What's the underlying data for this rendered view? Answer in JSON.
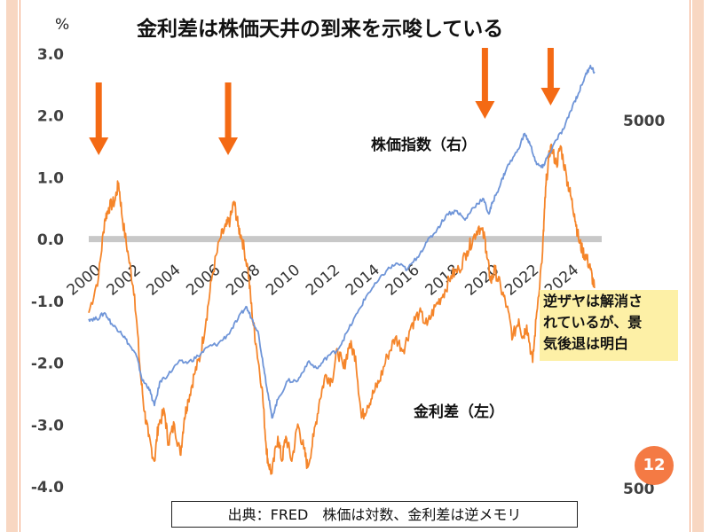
{
  "slide": {
    "title": "金利差は株価天井の到来を示唆している",
    "page_number": "12",
    "callout": [
      "逆ザヤは解消さ",
      "れているが、景",
      "気後退は明白"
    ],
    "source_note": "出典：FRED　株価は対数、金利差は逆メモリ",
    "label_stock": "株価指数（右）",
    "label_spread": "金利差（左）",
    "colors": {
      "spread": "#f5852a",
      "stock": "#6f95d8",
      "arrow": "#f46a14",
      "zero_band": "#c8c8c8",
      "rail": "#f8d7c2"
    }
  },
  "chart_data": {
    "type": "line",
    "y_left": {
      "unit": "%",
      "ticks": [
        "3.0",
        "2.0",
        "1.0",
        "0.0",
        "-1.0",
        "-2.0",
        "-3.0",
        "-4.0"
      ],
      "range": [
        -4,
        3
      ]
    },
    "y_right": {
      "scale": "log",
      "ticks": [
        "5000",
        "500"
      ]
    },
    "x_ticks": [
      "2000",
      "2002",
      "2004",
      "2006",
      "2008",
      "2010",
      "2012",
      "2014",
      "2016",
      "2018",
      "2020",
      "2022",
      "2024"
    ],
    "x_range": [
      2000,
      2025.5
    ],
    "grid": false,
    "series": [
      {
        "name": "金利差（左）",
        "axis": "left",
        "points": [
          [
            2000.0,
            -1.2
          ],
          [
            2000.5,
            -0.6
          ],
          [
            2000.8,
            0.3
          ],
          [
            2001.0,
            0.5
          ],
          [
            2001.3,
            0.6
          ],
          [
            2001.5,
            0.9
          ],
          [
            2001.7,
            0.3
          ],
          [
            2002.0,
            -0.3
          ],
          [
            2002.3,
            -0.9
          ],
          [
            2002.6,
            -2.2
          ],
          [
            2002.8,
            -2.8
          ],
          [
            2003.0,
            -3.2
          ],
          [
            2003.3,
            -3.6
          ],
          [
            2003.5,
            -3.0
          ],
          [
            2003.8,
            -2.8
          ],
          [
            2004.0,
            -3.3
          ],
          [
            2004.3,
            -3.0
          ],
          [
            2004.6,
            -3.5
          ],
          [
            2004.8,
            -2.9
          ],
          [
            2005.0,
            -2.6
          ],
          [
            2005.3,
            -2.2
          ],
          [
            2005.6,
            -1.9
          ],
          [
            2005.9,
            -1.3
          ],
          [
            2006.2,
            -0.6
          ],
          [
            2006.6,
            0.0
          ],
          [
            2006.9,
            0.2
          ],
          [
            2007.1,
            0.3
          ],
          [
            2007.3,
            0.6
          ],
          [
            2007.5,
            0.2
          ],
          [
            2007.7,
            0.0
          ],
          [
            2008.0,
            -0.5
          ],
          [
            2008.2,
            -1.2
          ],
          [
            2008.4,
            -1.7
          ],
          [
            2008.7,
            -2.4
          ],
          [
            2008.9,
            -3.3
          ],
          [
            2009.0,
            -3.6
          ],
          [
            2009.2,
            -3.8
          ],
          [
            2009.5,
            -3.2
          ],
          [
            2009.7,
            -3.6
          ],
          [
            2009.9,
            -3.2
          ],
          [
            2010.2,
            -3.6
          ],
          [
            2010.5,
            -3.0
          ],
          [
            2010.8,
            -3.4
          ],
          [
            2011.0,
            -3.7
          ],
          [
            2011.3,
            -3.2
          ],
          [
            2011.6,
            -2.6
          ],
          [
            2011.9,
            -2.2
          ],
          [
            2012.2,
            -2.3
          ],
          [
            2012.5,
            -1.8
          ],
          [
            2012.8,
            -2.1
          ],
          [
            2013.1,
            -1.7
          ],
          [
            2013.4,
            -1.9
          ],
          [
            2013.7,
            -2.9
          ],
          [
            2014.0,
            -2.7
          ],
          [
            2014.3,
            -2.5
          ],
          [
            2014.6,
            -2.3
          ],
          [
            2015.0,
            -1.9
          ],
          [
            2015.4,
            -1.6
          ],
          [
            2015.8,
            -1.8
          ],
          [
            2016.2,
            -1.4
          ],
          [
            2016.6,
            -1.2
          ],
          [
            2017.0,
            -1.4
          ],
          [
            2017.4,
            -1.1
          ],
          [
            2017.8,
            -0.9
          ],
          [
            2018.2,
            -0.6
          ],
          [
            2018.6,
            -0.5
          ],
          [
            2019.0,
            -0.2
          ],
          [
            2019.3,
            0.0
          ],
          [
            2019.6,
            0.2
          ],
          [
            2019.9,
            0.0
          ],
          [
            2020.0,
            -0.3
          ],
          [
            2020.2,
            -0.7
          ],
          [
            2020.4,
            -0.5
          ],
          [
            2020.7,
            -0.8
          ],
          [
            2021.0,
            -1.1
          ],
          [
            2021.3,
            -1.6
          ],
          [
            2021.6,
            -1.3
          ],
          [
            2021.8,
            -1.6
          ],
          [
            2022.0,
            -1.4
          ],
          [
            2022.3,
            -2.0
          ],
          [
            2022.5,
            -1.2
          ],
          [
            2022.8,
            -0.2
          ],
          [
            2022.9,
            0.5
          ],
          [
            2023.0,
            1.0
          ],
          [
            2023.2,
            1.5
          ],
          [
            2023.5,
            1.2
          ],
          [
            2023.7,
            1.5
          ],
          [
            2024.0,
            1.0
          ],
          [
            2024.2,
            0.7
          ],
          [
            2024.4,
            0.4
          ],
          [
            2024.6,
            0.0
          ],
          [
            2024.8,
            -0.2
          ],
          [
            2025.0,
            -0.3
          ],
          [
            2025.2,
            -0.5
          ],
          [
            2025.4,
            -0.8
          ]
        ]
      },
      {
        "name": "株価指数（右）",
        "axis": "right",
        "points": [
          [
            2000.0,
            -1.3
          ],
          [
            2000.4,
            -1.3
          ],
          [
            2000.8,
            -1.2
          ],
          [
            2001.2,
            -1.4
          ],
          [
            2001.6,
            -1.5
          ],
          [
            2002.0,
            -1.7
          ],
          [
            2002.4,
            -1.9
          ],
          [
            2002.7,
            -2.3
          ],
          [
            2003.0,
            -2.4
          ],
          [
            2003.3,
            -2.7
          ],
          [
            2003.6,
            -2.3
          ],
          [
            2004.0,
            -2.2
          ],
          [
            2004.5,
            -2.0
          ],
          [
            2005.0,
            -2.0
          ],
          [
            2005.5,
            -1.9
          ],
          [
            2006.0,
            -1.75
          ],
          [
            2006.5,
            -1.7
          ],
          [
            2007.0,
            -1.55
          ],
          [
            2007.5,
            -1.3
          ],
          [
            2007.9,
            -1.1
          ],
          [
            2008.2,
            -1.3
          ],
          [
            2008.5,
            -1.5
          ],
          [
            2008.8,
            -2.1
          ],
          [
            2009.0,
            -2.5
          ],
          [
            2009.2,
            -2.9
          ],
          [
            2009.5,
            -2.6
          ],
          [
            2010.0,
            -2.3
          ],
          [
            2010.5,
            -2.3
          ],
          [
            2011.0,
            -2.0
          ],
          [
            2011.5,
            -2.1
          ],
          [
            2012.0,
            -1.9
          ],
          [
            2012.5,
            -1.8
          ],
          [
            2013.0,
            -1.5
          ],
          [
            2013.5,
            -1.2
          ],
          [
            2014.0,
            -0.9
          ],
          [
            2014.5,
            -0.7
          ],
          [
            2015.0,
            -0.5
          ],
          [
            2015.5,
            -0.4
          ],
          [
            2016.0,
            -0.5
          ],
          [
            2016.5,
            -0.3
          ],
          [
            2017.0,
            -0.05
          ],
          [
            2017.5,
            0.15
          ],
          [
            2018.0,
            0.4
          ],
          [
            2018.5,
            0.45
          ],
          [
            2018.9,
            0.3
          ],
          [
            2019.3,
            0.5
          ],
          [
            2019.8,
            0.65
          ],
          [
            2020.1,
            0.4
          ],
          [
            2020.3,
            0.6
          ],
          [
            2020.7,
            0.9
          ],
          [
            2021.0,
            1.15
          ],
          [
            2021.5,
            1.4
          ],
          [
            2021.9,
            1.7
          ],
          [
            2022.2,
            1.5
          ],
          [
            2022.5,
            1.2
          ],
          [
            2022.8,
            1.15
          ],
          [
            2023.0,
            1.3
          ],
          [
            2023.5,
            1.6
          ],
          [
            2023.9,
            1.8
          ],
          [
            2024.3,
            2.15
          ],
          [
            2024.6,
            2.35
          ],
          [
            2024.9,
            2.6
          ],
          [
            2025.2,
            2.8
          ],
          [
            2025.4,
            2.7
          ]
        ]
      }
    ],
    "arrows_x": [
      2000.5,
      2007.0,
      2019.9,
      2023.2
    ]
  }
}
